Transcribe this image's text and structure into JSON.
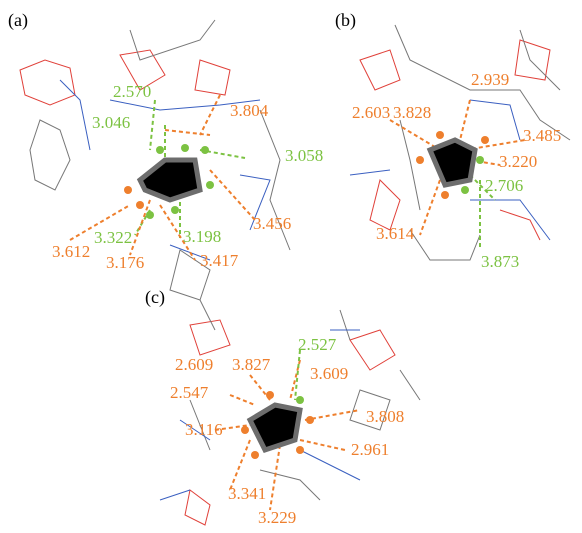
{
  "panels": [
    {
      "label": "(a)",
      "distances": [
        "2.570",
        "3.046",
        "3.804",
        "3.058",
        "3.612",
        "3.456",
        "3.322",
        "3.198",
        "3.176",
        "3.417"
      ]
    },
    {
      "label": "(b)",
      "distances": [
        "2.939",
        "2.603",
        "3.828",
        "3.485",
        "3.220",
        "2.706",
        "3.614",
        "3.873"
      ]
    },
    {
      "label": "(c)",
      "distances": [
        "2.527",
        "2.609",
        "3.827",
        "3.609",
        "2.547",
        "3.808",
        "3.116",
        "2.961",
        "3.341",
        "3.229"
      ]
    }
  ]
}
